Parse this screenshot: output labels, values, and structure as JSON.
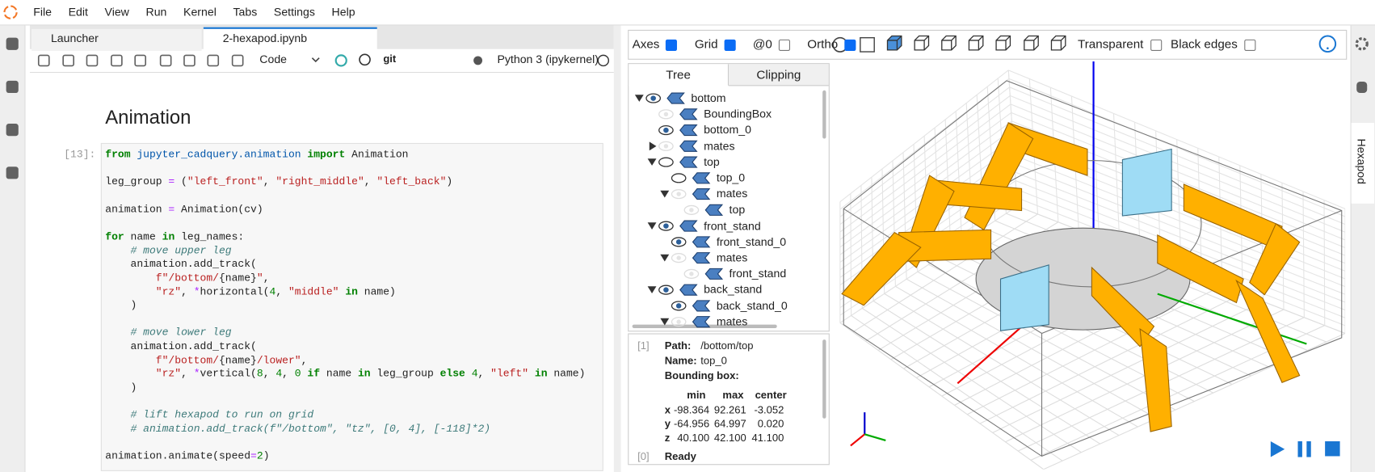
{
  "menu": [
    "File",
    "Edit",
    "View",
    "Run",
    "Kernel",
    "Tabs",
    "Settings",
    "Help"
  ],
  "tabs": [
    "Launcher",
    "2-hexapod.ipynb"
  ],
  "toolbar": {
    "cell_type": "Code",
    "git": "git",
    "kernel": "Python 3 (ipykernel)"
  },
  "notebook": {
    "heading": "Animation",
    "prompt": "[13]:",
    "code": [
      [
        [
          "from",
          "kw"
        ],
        [
          " "
        ],
        [
          "jupyter_cadquery.animation",
          "mod"
        ],
        [
          " "
        ],
        [
          "import",
          "kw"
        ],
        [
          " Animation"
        ]
      ],
      [],
      [
        [
          "leg_group "
        ],
        [
          "=",
          "op"
        ],
        [
          " ("
        ],
        [
          "\"left_front\"",
          "str"
        ],
        [
          ", "
        ],
        [
          "\"right_middle\"",
          "str"
        ],
        [
          ", "
        ],
        [
          "\"left_back\"",
          "str"
        ],
        [
          ")"
        ]
      ],
      [],
      [
        [
          "animation "
        ],
        [
          "=",
          "op"
        ],
        [
          " Animation(cv)"
        ]
      ],
      [],
      [
        [
          "for",
          "kw"
        ],
        [
          " name "
        ],
        [
          "in",
          "kw"
        ],
        [
          " leg_names:"
        ]
      ],
      [
        [
          "    "
        ],
        [
          "# move upper leg",
          "com"
        ]
      ],
      [
        [
          "    animation.add_track("
        ]
      ],
      [
        [
          "        "
        ],
        [
          "f\"/bottom/",
          "str"
        ],
        [
          "{name}"
        ],
        [
          "\"",
          "str"
        ],
        [
          ","
        ]
      ],
      [
        [
          "        "
        ],
        [
          "\"rz\"",
          "str"
        ],
        [
          ", "
        ],
        [
          "*",
          "op"
        ],
        [
          "horizontal("
        ],
        [
          "4",
          "num"
        ],
        [
          ", "
        ],
        [
          "\"middle\"",
          "str"
        ],
        [
          " "
        ],
        [
          "in",
          "kw"
        ],
        [
          " name)"
        ]
      ],
      [
        [
          "    )"
        ]
      ],
      [],
      [
        [
          "    "
        ],
        [
          "# move lower leg",
          "com"
        ]
      ],
      [
        [
          "    animation.add_track("
        ]
      ],
      [
        [
          "        "
        ],
        [
          "f\"/bottom/",
          "str"
        ],
        [
          "{name}"
        ],
        [
          "/lower\"",
          "str"
        ],
        [
          ","
        ]
      ],
      [
        [
          "        "
        ],
        [
          "\"rz\"",
          "str"
        ],
        [
          ", "
        ],
        [
          "*",
          "op"
        ],
        [
          "vertical("
        ],
        [
          "8",
          "num"
        ],
        [
          ", "
        ],
        [
          "4",
          "num"
        ],
        [
          ", "
        ],
        [
          "0",
          "num"
        ],
        [
          " "
        ],
        [
          "if",
          "kw"
        ],
        [
          " name "
        ],
        [
          "in",
          "kw"
        ],
        [
          " leg_group "
        ],
        [
          "else",
          "kw"
        ],
        [
          " "
        ],
        [
          "4",
          "num"
        ],
        [
          ", "
        ],
        [
          "\"left\"",
          "str"
        ],
        [
          " "
        ],
        [
          "in",
          "kw"
        ],
        [
          " name)"
        ]
      ],
      [
        [
          "    )"
        ]
      ],
      [],
      [
        [
          "    "
        ],
        [
          "# lift hexapod to run on grid",
          "com"
        ]
      ],
      [
        [
          "    "
        ],
        [
          "# animation.add_track(f\"/bottom\", \"tz\", [0, 4], [-118]*2)",
          "com"
        ]
      ],
      [],
      [
        [
          "animation.animate(speed"
        ],
        [
          "=",
          "op"
        ],
        [
          "2",
          "num"
        ],
        [
          ")"
        ]
      ]
    ]
  },
  "viewer": {
    "options": [
      {
        "label": "Axes",
        "checked": true
      },
      {
        "label": "Grid",
        "checked": true
      },
      {
        "label": "@0",
        "checked": false
      },
      {
        "label": "Ortho",
        "checked": true
      }
    ],
    "options2": [
      {
        "label": "Transparent",
        "checked": false
      },
      {
        "label": "Black edges",
        "checked": false
      }
    ],
    "panel_tabs": [
      "Tree",
      "Clipping"
    ],
    "tree": [
      {
        "label": "bottom",
        "depth": 0,
        "arrow": "open",
        "eye": "on"
      },
      {
        "label": "BoundingBox",
        "depth": 1,
        "arrow": null,
        "eye": "dim"
      },
      {
        "label": "bottom_0",
        "depth": 1,
        "arrow": null,
        "eye": "on"
      },
      {
        "label": "mates",
        "depth": 1,
        "arrow": "closed",
        "eye": "dim"
      },
      {
        "label": "top",
        "depth": 1,
        "arrow": "open",
        "eye": "off"
      },
      {
        "label": "top_0",
        "depth": 2,
        "arrow": null,
        "eye": "off"
      },
      {
        "label": "mates",
        "depth": 2,
        "arrow": "open",
        "eye": "dim"
      },
      {
        "label": "top",
        "depth": 3,
        "arrow": null,
        "eye": "dim"
      },
      {
        "label": "front_stand",
        "depth": 1,
        "arrow": "open",
        "eye": "on"
      },
      {
        "label": "front_stand_0",
        "depth": 2,
        "arrow": null,
        "eye": "on"
      },
      {
        "label": "mates",
        "depth": 2,
        "arrow": "open",
        "eye": "dim"
      },
      {
        "label": "front_stand",
        "depth": 3,
        "arrow": null,
        "eye": "dim"
      },
      {
        "label": "back_stand",
        "depth": 1,
        "arrow": "open",
        "eye": "on"
      },
      {
        "label": "back_stand_0",
        "depth": 2,
        "arrow": null,
        "eye": "on"
      },
      {
        "label": "mates",
        "depth": 2,
        "arrow": "open",
        "eye": "dim"
      }
    ],
    "info": {
      "prompt": "[1]",
      "path_label": "Path:",
      "path": "/bottom/top",
      "name_label": "Name:",
      "name": "top_0",
      "bbox_label": "Bounding box:",
      "columns": [
        "min",
        "max",
        "center"
      ],
      "rows": [
        [
          "x",
          "-98.364",
          "92.261",
          "-3.052"
        ],
        [
          "y",
          "-64.956",
          "64.997",
          "0.020"
        ],
        [
          "z",
          "40.100",
          "42.100",
          "41.100"
        ]
      ],
      "status_prompt": "[0]",
      "status": "Ready"
    }
  },
  "side_tab": "Hexapod"
}
